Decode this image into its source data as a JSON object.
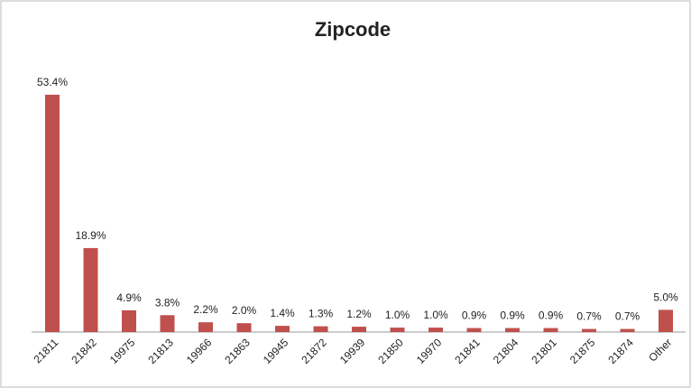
{
  "chart_data": {
    "type": "bar",
    "title": "Zipcode",
    "categories": [
      "21811",
      "21842",
      "19975",
      "21813",
      "19966",
      "21863",
      "19945",
      "21872",
      "19939",
      "21850",
      "19970",
      "21841",
      "21804",
      "21801",
      "21875",
      "21874",
      "Other"
    ],
    "values": [
      53.4,
      18.9,
      4.9,
      3.8,
      2.2,
      2.0,
      1.4,
      1.3,
      1.2,
      1.0,
      1.0,
      0.9,
      0.9,
      0.9,
      0.7,
      0.7,
      5.0
    ],
    "value_labels": [
      "53.4%",
      "18.9%",
      "4.9%",
      "3.8%",
      "2.2%",
      "2.0%",
      "1.4%",
      "1.3%",
      "1.2%",
      "1.0%",
      "1.0%",
      "0.9%",
      "0.9%",
      "0.9%",
      "0.7%",
      "0.7%",
      "5.0%"
    ],
    "color": "#c0504d"
  }
}
